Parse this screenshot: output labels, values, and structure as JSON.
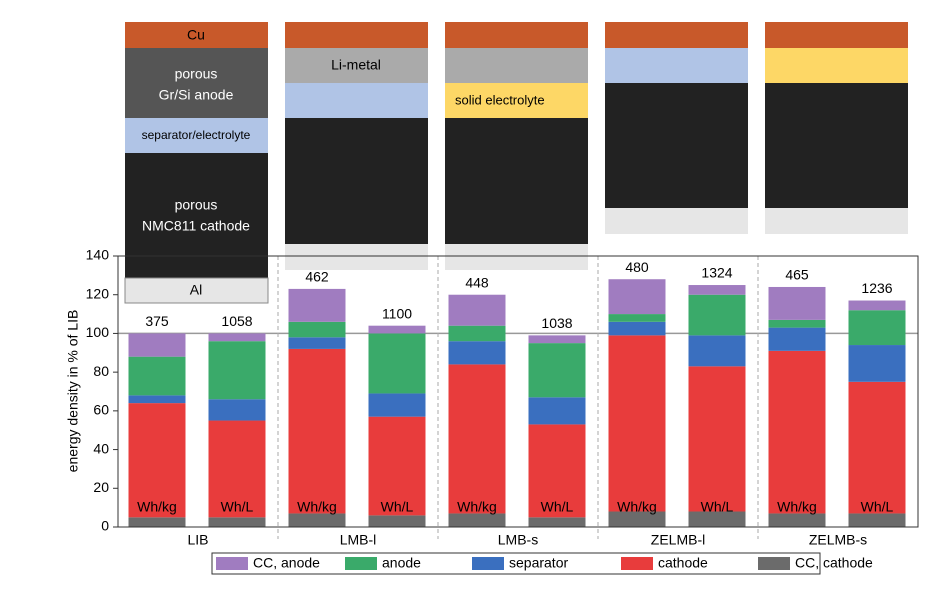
{
  "chart_data": {
    "type": "stacked_bar",
    "groups": [
      "LIB",
      "LMB-l",
      "LMB-s",
      "ZELMB-l",
      "ZELMB-s"
    ],
    "categories": [
      "Wh/kg",
      "Wh/L",
      "Wh/kg",
      "Wh/L",
      "Wh/kg",
      "Wh/L",
      "Wh/kg",
      "Wh/L",
      "Wh/kg",
      "Wh/L"
    ],
    "series": [
      {
        "name": "CC, anode",
        "color": "#a07cc0",
        "values": [
          12,
          4,
          17,
          4,
          16,
          4,
          18,
          5,
          17,
          5
        ]
      },
      {
        "name": "anode",
        "color": "#3aaa6a",
        "values": [
          20,
          30,
          8,
          31,
          8,
          28,
          4,
          21,
          4,
          18
        ]
      },
      {
        "name": "separator",
        "color": "#3a6fbf",
        "values": [
          4,
          11,
          6,
          12,
          12,
          14,
          7,
          16,
          12,
          19
        ]
      },
      {
        "name": "cathode",
        "color": "#e83c3c",
        "values": [
          59,
          50,
          85,
          51,
          77,
          48,
          91,
          75,
          84,
          68
        ]
      },
      {
        "name": "CC, cathode",
        "color": "#6b6b6b",
        "values": [
          5,
          5,
          7,
          6,
          7,
          5,
          8,
          8,
          7,
          7
        ]
      }
    ],
    "top_labels": [
      375,
      1058,
      462,
      1100,
      448,
      1038,
      480,
      1324,
      465,
      1236
    ],
    "ylabel": "energy density in % of LIB",
    "ylim": [
      0,
      140
    ],
    "yticks": [
      0,
      20,
      40,
      60,
      80,
      100,
      120,
      140
    ],
    "reference_line": 100,
    "legend_position": "bottom"
  },
  "schematics": {
    "lib": {
      "cu": "Cu",
      "anode": [
        "porous",
        "Gr/Si anode"
      ],
      "separator": "separator/electrolyte",
      "cathode": [
        "porous",
        "NMC811 cathode"
      ],
      "al": "Al"
    },
    "lmb_l": {
      "anode": "Li-metal"
    },
    "lmb_s": {
      "electrolyte": "solid electrolyte"
    }
  }
}
